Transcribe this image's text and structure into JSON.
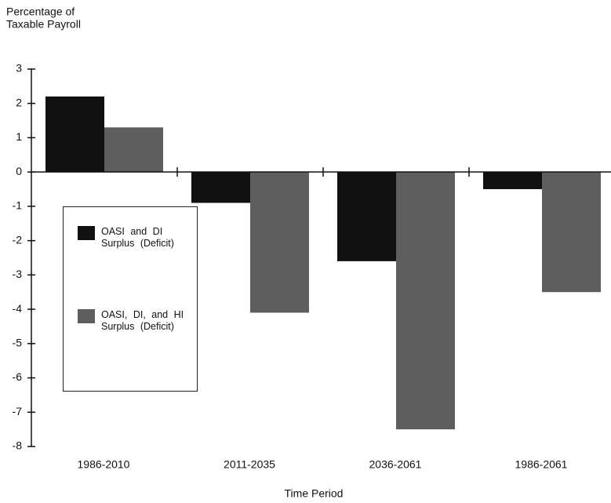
{
  "chart_data": {
    "type": "bar",
    "ylabel": [
      "Percentage of",
      "Taxable Payroll"
    ],
    "xlabel": "Time Period",
    "categories": [
      "1986-2010",
      "2011-2035",
      "2036-2061",
      "1986-2061"
    ],
    "series": [
      {
        "name": "OASI and DI Surplus (Deficit)",
        "color": "#111111",
        "values": [
          2.2,
          -0.9,
          -2.6,
          -0.5
        ]
      },
      {
        "name": "OASI, DI, and HI Surplus (Deficit)",
        "color": "#5e5e5e",
        "values": [
          1.3,
          -4.1,
          -7.5,
          -3.5
        ]
      }
    ],
    "ylim": [
      -8,
      3
    ],
    "yticks": [
      -8,
      -7,
      -6,
      -5,
      -4,
      -3,
      -2,
      -1,
      0,
      1,
      2,
      3
    ]
  }
}
